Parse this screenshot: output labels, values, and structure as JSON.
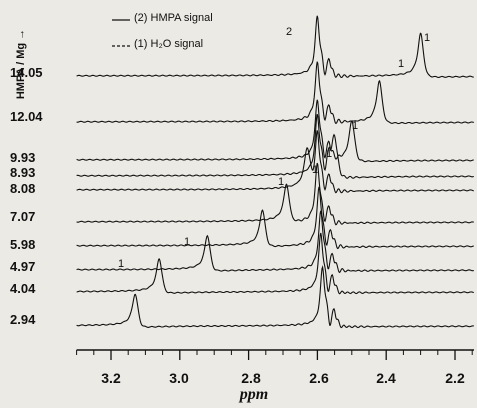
{
  "chart_data": {
    "type": "line",
    "xlabel": "ppm",
    "ylabel": "HMPA / Mg",
    "xlim": [
      3.32,
      2.1
    ],
    "x_reversed": true,
    "x_ticks": [
      "3.2",
      "3.0",
      "2.8",
      "2.6",
      "2.4",
      "2.2"
    ],
    "legend": {
      "entries": [
        "(2) HMPA signal",
        "(1) H₂O signal"
      ],
      "placement": "top-center"
    },
    "series": [
      {
        "name": "2.94",
        "h2o_peak_ppm": 3.13,
        "hmpa_peak_ppm": 2.585
      },
      {
        "name": "4.04",
        "h2o_peak_ppm": 3.06,
        "hmpa_peak_ppm": 2.59
      },
      {
        "name": "4.97",
        "h2o_peak_ppm": 2.92,
        "hmpa_peak_ppm": 2.59
      },
      {
        "name": "5.98",
        "h2o_peak_ppm": 2.76,
        "hmpa_peak_ppm": 2.595
      },
      {
        "name": "7.07",
        "h2o_peak_ppm": 2.69,
        "hmpa_peak_ppm": 2.6
      },
      {
        "name": "8.08",
        "h2o_peak_ppm": 2.63,
        "hmpa_peak_ppm": 2.6
      },
      {
        "name": "8.93",
        "h2o_peak_ppm": 2.55,
        "hmpa_peak_ppm": 2.6
      },
      {
        "name": "9.93",
        "h2o_peak_ppm": 2.5,
        "hmpa_peak_ppm": 2.6
      },
      {
        "name": "12.04",
        "h2o_peak_ppm": 2.42,
        "hmpa_peak_ppm": 2.6
      },
      {
        "name": "14.05",
        "h2o_peak_ppm": 2.3,
        "hmpa_peak_ppm": 2.6
      }
    ],
    "peak_labels": [
      "1",
      "2"
    ]
  }
}
